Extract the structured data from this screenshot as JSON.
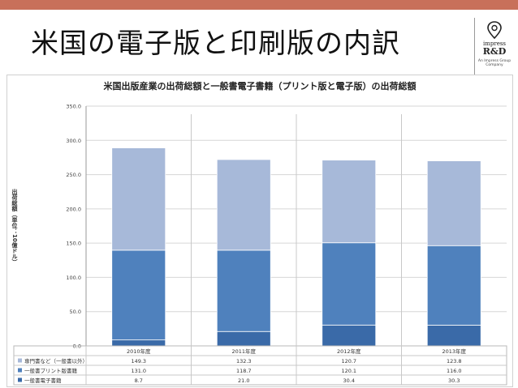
{
  "slide": {
    "title": "米国の電子版と印刷版の内訳",
    "accent_color": "#c8705a"
  },
  "logo": {
    "icon": "map-pin-icon",
    "line1": "impress",
    "line2": "R&D",
    "line3": "An Impress Group Company"
  },
  "chart_data": {
    "type": "bar",
    "stacked": true,
    "title": "米国出版産業の出荷総額と一般書電子書籍（プリント版と電子版）の出荷総額",
    "ylabel": "出荷総額（単位：10億ドル）",
    "xlabel": "",
    "ylim": [
      0,
      350
    ],
    "yticks": [
      "0.0",
      "50.0",
      "100.0",
      "150.0",
      "200.0",
      "250.0",
      "300.0",
      "350.0"
    ],
    "categories": [
      "2010年度",
      "2011年度",
      "2012年度",
      "2013年度"
    ],
    "series": [
      {
        "name": "一般書電子書籍",
        "values": [
          8.7,
          21.0,
          30.4,
          30.3
        ],
        "labels": [
          "8.7",
          "21.0",
          "30.4",
          "30.3"
        ],
        "color": "#3a6aa8"
      },
      {
        "name": "一般書プリント版書籍",
        "values": [
          131.0,
          118.7,
          120.1,
          116.0
        ],
        "labels": [
          "131.0",
          "118.7",
          "120.1",
          "116.0"
        ],
        "color": "#4f81bd"
      },
      {
        "name": "専門書など（一般書以外）",
        "values": [
          149.3,
          132.3,
          120.7,
          123.8
        ],
        "labels": [
          "149.3",
          "132.3",
          "120.7",
          "123.8"
        ],
        "color": "#a7b9d9"
      }
    ],
    "table_order": [
      2,
      1,
      0
    ],
    "grid": true,
    "legend": "data-table-below"
  }
}
